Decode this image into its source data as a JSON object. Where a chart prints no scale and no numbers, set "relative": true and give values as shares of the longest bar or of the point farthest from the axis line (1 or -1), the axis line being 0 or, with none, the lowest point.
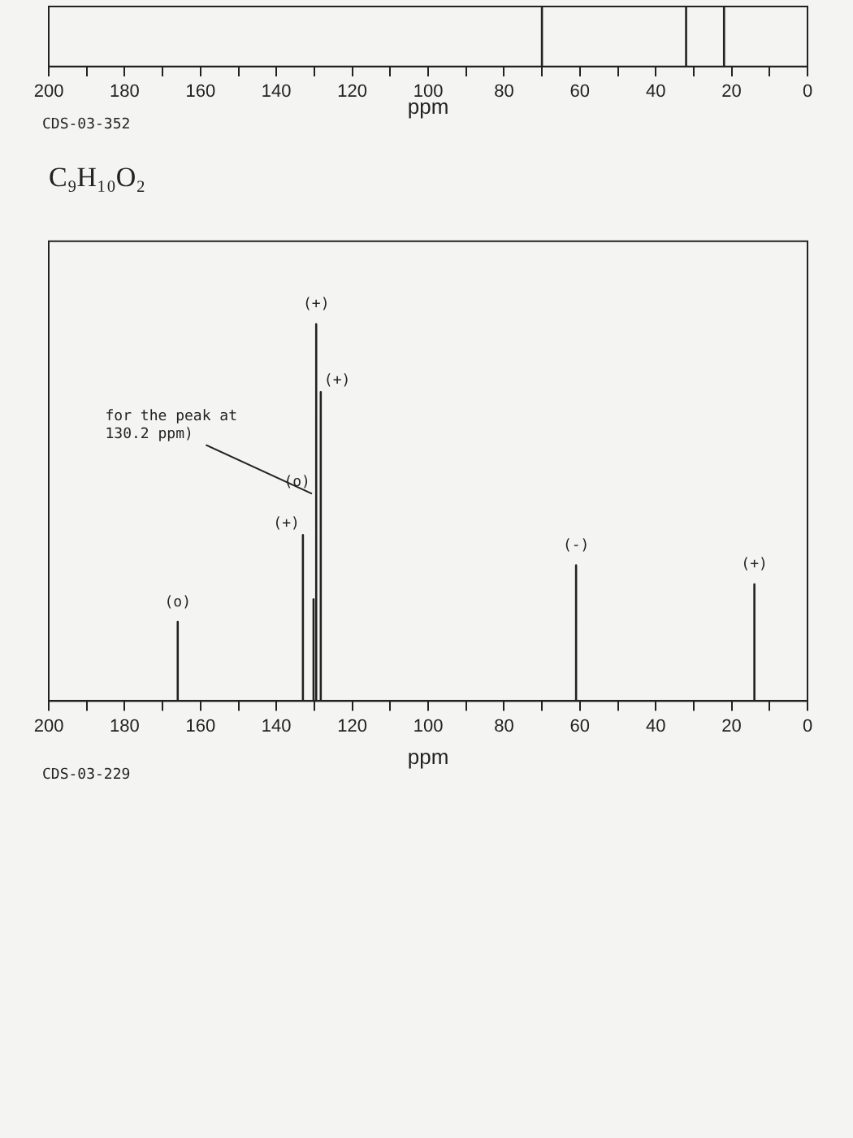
{
  "chart_data": [
    {
      "type": "line",
      "xlabel": "ppm",
      "relative": true,
      "xlim": [
        200,
        0
      ],
      "xticks": [
        200,
        {
          "value": 190,
          "label": null
        },
        180,
        {
          "value": 170,
          "label": null
        },
        160,
        {
          "value": 150,
          "label": null
        },
        140,
        {
          "value": 130,
          "label": null
        },
        120,
        {
          "value": 110,
          "label": null
        },
        100,
        {
          "value": 90,
          "label": null
        },
        80,
        {
          "value": 70,
          "label": null
        },
        60,
        {
          "value": 50,
          "label": null
        },
        40,
        {
          "value": 30,
          "label": null
        },
        20,
        {
          "value": 10,
          "label": null
        },
        0
      ],
      "annotations": [
        "CDS-03-352"
      ],
      "tick_labels": "x",
      "series": [
        {
          "color": "#222222",
          "x": [
            200,
            70,
            70,
            70,
            32,
            32,
            32,
            22,
            22,
            22,
            0
          ],
          "values": [
            0,
            0,
            1,
            0,
            0,
            1,
            0,
            0,
            1,
            0,
            0
          ]
        }
      ]
    },
    {
      "type": "line",
      "title": "C₉H₁₀O₂",
      "xlabel": "ppm",
      "relative": true,
      "xlim": [
        200,
        0
      ],
      "xticks": [
        200,
        {
          "value": 190,
          "label": null
        },
        180,
        {
          "value": 170,
          "label": null
        },
        160,
        {
          "value": 150,
          "label": null
        },
        140,
        {
          "value": 130,
          "label": null
        },
        120,
        {
          "value": 110,
          "label": null
        },
        100,
        {
          "value": 90,
          "label": null
        },
        80,
        {
          "value": 70,
          "label": null
        },
        60,
        {
          "value": 50,
          "label": null
        },
        40,
        {
          "value": 30,
          "label": null
        },
        20,
        {
          "value": 10,
          "label": null
        },
        0
      ],
      "grid": false,
      "legend": false,
      "series": [
        {
          "color": "#222222",
          "x": [
            200,
            166,
            166,
            166,
            133,
            133,
            133,
            130.2,
            130.2,
            130.2,
            129.5,
            129.5,
            129.5,
            128.3,
            128.3,
            128.3,
            61,
            61,
            61,
            14,
            14,
            14,
            0
          ],
          "values": [
            0,
            0,
            0.21,
            0,
            0,
            0.44,
            0,
            0,
            0.27,
            0,
            0,
            1,
            0,
            0,
            0.82,
            0,
            0,
            0.36,
            0,
            0,
            0.31,
            0,
            0
          ]
        }
      ],
      "annotations": [
        {
          "text": "(o)",
          "x": 166,
          "y": 0.21
        },
        {
          "text": "(+)",
          "x": 133,
          "y": 0.44
        },
        {
          "text": "(o)",
          "x": 130.2,
          "y": 0.55
        },
        {
          "text": "for the peak at\n130.2 ppm)",
          "x": 130.2,
          "y": 0.55
        },
        {
          "text": "(+)",
          "x": 129.5,
          "y": 1
        },
        {
          "text": "(+)",
          "x": 128.3,
          "y": 0.82
        },
        {
          "text": "(-)",
          "x": 61,
          "y": 0.36
        },
        {
          "text": "(+)",
          "x": 14,
          "y": 0.31
        },
        "CDS-03-229"
      ]
    }
  ]
}
